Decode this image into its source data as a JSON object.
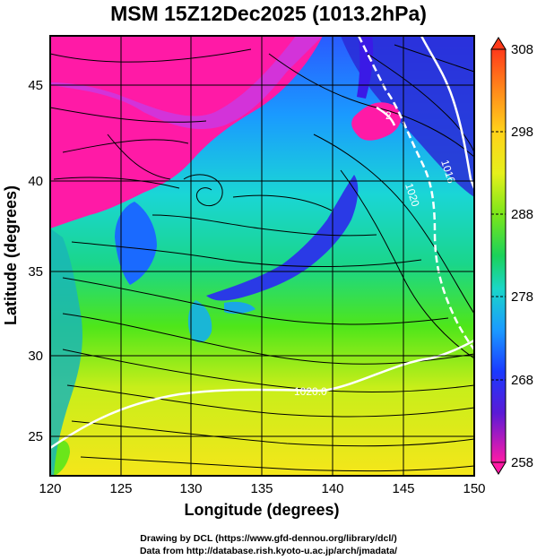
{
  "title": "MSM 15Z12Dec2025 (1013.2hPa)",
  "x_axis": {
    "label": "Longitude (degrees)",
    "range": [
      120,
      150
    ],
    "ticks": [
      "120",
      "125",
      "130",
      "135",
      "140",
      "145",
      "150"
    ]
  },
  "y_axis": {
    "label": "Latitude  (degrees)",
    "range": [
      22.4,
      47.6
    ],
    "ticks": [
      "25",
      "30",
      "35",
      "40",
      "45"
    ]
  },
  "colorbar": {
    "range": [
      258,
      308
    ],
    "labels": [
      "308",
      "298",
      "288",
      "278",
      "268",
      "258"
    ],
    "colors": [
      "#ff3a1a",
      "#ff9a1a",
      "#f5e61a",
      "#9be61a",
      "#1ad24a",
      "#1ad6c8",
      "#1aa6ff",
      "#1a4aff",
      "#2a1ad6",
      "#8a1ad6",
      "#ff1aa6"
    ]
  },
  "contours": [
    {
      "label": "1020.0"
    },
    {
      "label": "1020"
    },
    {
      "label": "1016"
    },
    {
      "label": "2"
    }
  ],
  "grid": true,
  "credits": {
    "line1": "Drawing by DCL (https://www.gfd-dennou.org/library/dcl/)",
    "line2": "Data from http://database.rish.kyoto-u.ac.jp/arch/jmadata/"
  }
}
